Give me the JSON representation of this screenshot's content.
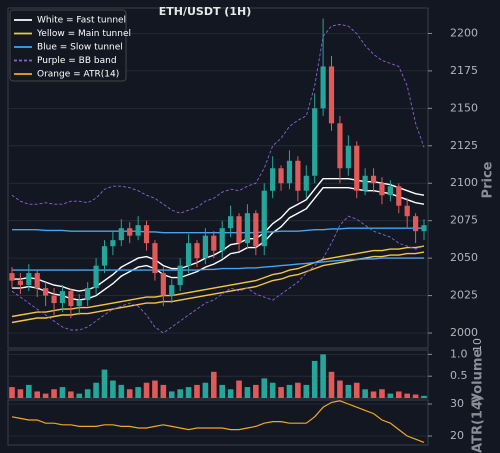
{
  "chart_data": {
    "type": "candlestick",
    "title": "ETH/USDT (1H)",
    "ylabel": "Price",
    "ylim": [
      1990,
      2217
    ],
    "yticks": [
      2000,
      2025,
      2050,
      2075,
      2100,
      2125,
      2150,
      2175,
      2200
    ],
    "grid": true,
    "legend": "upper left",
    "up_color": "#26a69a",
    "down_color": "#e05a5a",
    "open": [
      2040,
      2035,
      2032,
      2040,
      2030,
      2025,
      2020,
      2028,
      2018,
      2022,
      2030,
      2045,
      2058,
      2062,
      2070,
      2065,
      2072,
      2060,
      2040,
      2025,
      2032,
      2045,
      2060,
      2050,
      2065,
      2055,
      2070,
      2078,
      2060,
      2080,
      2058,
      2095,
      2110,
      2100,
      2115,
      2095,
      2105,
      2150,
      2178,
      2140,
      2110,
      2125,
      2095,
      2105,
      2100,
      2092,
      2098,
      2085,
      2078,
      2068
    ],
    "high": [
      2044,
      2040,
      2046,
      2042,
      2034,
      2030,
      2032,
      2030,
      2026,
      2034,
      2050,
      2062,
      2068,
      2076,
      2074,
      2078,
      2075,
      2062,
      2044,
      2036,
      2050,
      2066,
      2062,
      2070,
      2068,
      2075,
      2085,
      2080,
      2086,
      2082,
      2100,
      2118,
      2112,
      2122,
      2118,
      2112,
      2160,
      2210,
      2185,
      2145,
      2132,
      2128,
      2110,
      2110,
      2104,
      2102,
      2100,
      2090,
      2080,
      2076
    ],
    "low": [
      2030,
      2026,
      2028,
      2024,
      2018,
      2012,
      2014,
      2010,
      2012,
      2018,
      2026,
      2040,
      2052,
      2058,
      2060,
      2062,
      2055,
      2035,
      2018,
      2020,
      2028,
      2040,
      2044,
      2046,
      2050,
      2050,
      2064,
      2055,
      2056,
      2052,
      2052,
      2090,
      2095,
      2096,
      2088,
      2090,
      2100,
      2145,
      2135,
      2100,
      2105,
      2090,
      2092,
      2094,
      2086,
      2088,
      2080,
      2070,
      2060,
      2062
    ],
    "close": [
      2035,
      2032,
      2040,
      2030,
      2025,
      2020,
      2028,
      2018,
      2022,
      2030,
      2045,
      2058,
      2062,
      2070,
      2065,
      2072,
      2060,
      2040,
      2025,
      2032,
      2045,
      2060,
      2050,
      2065,
      2055,
      2070,
      2078,
      2060,
      2080,
      2058,
      2095,
      2110,
      2100,
      2115,
      2095,
      2105,
      2150,
      2178,
      2140,
      2110,
      2125,
      2095,
      2105,
      2100,
      2092,
      2098,
      2085,
      2078,
      2068,
      2072
    ],
    "overlays": [
      {
        "name": "White = Fast tunnel",
        "color": "#ffffff",
        "dashed": false,
        "upper": [
          2036,
          2036,
          2037,
          2036,
          2034,
          2032,
          2031,
          2029,
          2028,
          2029,
          2031,
          2035,
          2039,
          2044,
          2047,
          2050,
          2051,
          2049,
          2045,
          2043,
          2043,
          2045,
          2047,
          2050,
          2052,
          2055,
          2059,
          2060,
          2063,
          2063,
          2067,
          2073,
          2077,
          2083,
          2086,
          2089,
          2096,
          2103,
          2103,
          2103,
          2103,
          2102,
          2101,
          2101,
          2100,
          2099,
          2097,
          2095,
          2093,
          2092
        ],
        "lower": [
          2030,
          2030,
          2031,
          2030,
          2028,
          2026,
          2025,
          2023,
          2022,
          2023,
          2025,
          2029,
          2033,
          2038,
          2041,
          2044,
          2045,
          2043,
          2039,
          2037,
          2037,
          2039,
          2041,
          2044,
          2046,
          2049,
          2053,
          2054,
          2057,
          2057,
          2061,
          2067,
          2071,
          2077,
          2080,
          2083,
          2090,
          2097,
          2097,
          2097,
          2097,
          2096,
          2095,
          2095,
          2094,
          2093,
          2091,
          2089,
          2087,
          2086
        ]
      },
      {
        "name": "Yellow = Main tunnel",
        "color": "#f5c542",
        "dashed": false,
        "upper": [
          2011,
          2012,
          2013,
          2014,
          2014,
          2015,
          2016,
          2016,
          2017,
          2017,
          2018,
          2019,
          2020,
          2021,
          2022,
          2023,
          2024,
          2024,
          2025,
          2025,
          2026,
          2027,
          2028,
          2029,
          2030,
          2031,
          2032,
          2033,
          2034,
          2035,
          2037,
          2039,
          2040,
          2042,
          2043,
          2045,
          2047,
          2049,
          2050,
          2051,
          2052,
          2053,
          2054,
          2055,
          2055,
          2056,
          2056,
          2057,
          2057,
          2058
        ],
        "lower": [
          2007,
          2008,
          2009,
          2010,
          2010,
          2011,
          2012,
          2012,
          2013,
          2013,
          2014,
          2015,
          2016,
          2017,
          2018,
          2019,
          2020,
          2020,
          2021,
          2021,
          2022,
          2023,
          2024,
          2025,
          2026,
          2027,
          2028,
          2029,
          2030,
          2031,
          2033,
          2035,
          2036,
          2038,
          2039,
          2041,
          2043,
          2045,
          2046,
          2047,
          2048,
          2049,
          2050,
          2051,
          2051,
          2052,
          2052,
          2053,
          2053,
          2054
        ]
      },
      {
        "name": "Blue = Slow tunnel",
        "color": "#4aa3f0",
        "dashed": false,
        "upper": [
          2069,
          2069,
          2069,
          2069,
          2068.5,
          2068.5,
          2068.5,
          2068,
          2068,
          2068,
          2068,
          2068,
          2068,
          2068,
          2068,
          2068,
          2067.5,
          2067.5,
          2067,
          2067,
          2067,
          2067,
          2067,
          2067,
          2067,
          2067,
          2067,
          2067,
          2067,
          2067,
          2067.5,
          2067.5,
          2068,
          2068,
          2068,
          2068.5,
          2069,
          2069,
          2069.5,
          2069.5,
          2070,
          2070,
          2070,
          2070,
          2070,
          2070,
          2070,
          2070,
          2070,
          2070
        ],
        "lower": [
          2042,
          2042,
          2042,
          2042,
          2042,
          2042,
          2042,
          2042,
          2042,
          2042,
          2042,
          2042,
          2042,
          2042,
          2042,
          2042,
          2042,
          2042,
          2042,
          2042,
          2042,
          2042,
          2042,
          2042.5,
          2042.5,
          2043,
          2043,
          2043,
          2043.5,
          2043.5,
          2044,
          2044.5,
          2045,
          2045.5,
          2046,
          2046.5,
          2047,
          2047.5,
          2048,
          2048.5,
          2049,
          2049,
          2049.5,
          2049.5,
          2050,
          2050,
          2050,
          2050,
          2050,
          2050
        ]
      },
      {
        "name": "Purple = BB band",
        "color": "#8a63d2",
        "dashed": true,
        "upper": [
          2092,
          2088,
          2086,
          2086,
          2087,
          2086,
          2086,
          2088,
          2088,
          2087,
          2090,
          2096,
          2098,
          2098,
          2097,
          2095,
          2092,
          2090,
          2086,
          2082,
          2080,
          2082,
          2084,
          2088,
          2090,
          2094,
          2096,
          2095,
          2098,
          2100,
          2110,
          2125,
          2130,
          2138,
          2142,
          2145,
          2165,
          2198,
          2205,
          2206,
          2205,
          2200,
          2192,
          2186,
          2182,
          2180,
          2178,
          2165,
          2140,
          2124
        ],
        "lower": [
          2028,
          2024,
          2020,
          2016,
          2012,
          2008,
          2004,
          2002,
          2002,
          2004,
          2008,
          2012,
          2016,
          2018,
          2020,
          2018,
          2012,
          2004,
          2000,
          2004,
          2008,
          2012,
          2016,
          2020,
          2022,
          2026,
          2030,
          2028,
          2030,
          2026,
          2024,
          2022,
          2026,
          2030,
          2034,
          2040,
          2045,
          2050,
          2060,
          2072,
          2078,
          2076,
          2072,
          2068,
          2066,
          2064,
          2060,
          2058,
          2056,
          2058
        ]
      }
    ],
    "volume": {
      "label": "Volume",
      "offset_label": "10",
      "ylim": [
        0,
        1.1
      ],
      "yticks": [
        0.5,
        {
          "value": 1,
          "label": "1.0"
        }
      ],
      "values": [
        0.25,
        0.2,
        0.3,
        0.15,
        0.1,
        0.2,
        0.25,
        0.15,
        0.1,
        0.2,
        0.35,
        0.65,
        0.4,
        0.3,
        0.2,
        0.25,
        0.35,
        0.4,
        0.3,
        0.15,
        0.2,
        0.25,
        0.3,
        0.35,
        0.6,
        0.3,
        0.2,
        0.4,
        0.25,
        0.3,
        0.45,
        0.35,
        0.25,
        0.3,
        0.35,
        0.3,
        0.85,
        1.0,
        0.6,
        0.4,
        0.3,
        0.35,
        0.2,
        0.15,
        0.2,
        0.1,
        0.15,
        0.1,
        0.08,
        0.05
      ]
    },
    "atr": {
      "name": "Orange = ATR(14)",
      "label": "ATR(14)",
      "color": "#f5a623",
      "ylim": [
        17.2,
        31.25
      ],
      "yticks": [
        20,
        30
      ],
      "values": [
        26,
        25.5,
        25,
        25,
        24,
        24,
        23.5,
        23.5,
        23,
        23,
        23,
        23.5,
        23.5,
        23,
        23,
        22.5,
        22.5,
        23,
        23.5,
        23,
        22.5,
        22,
        22.5,
        22.5,
        22.5,
        22.5,
        22,
        22,
        22.5,
        23,
        24,
        24.5,
        24.5,
        24,
        24,
        24,
        26,
        29,
        30.5,
        31,
        30,
        29,
        28,
        27,
        25,
        24,
        22,
        20,
        19,
        18
      ]
    }
  }
}
